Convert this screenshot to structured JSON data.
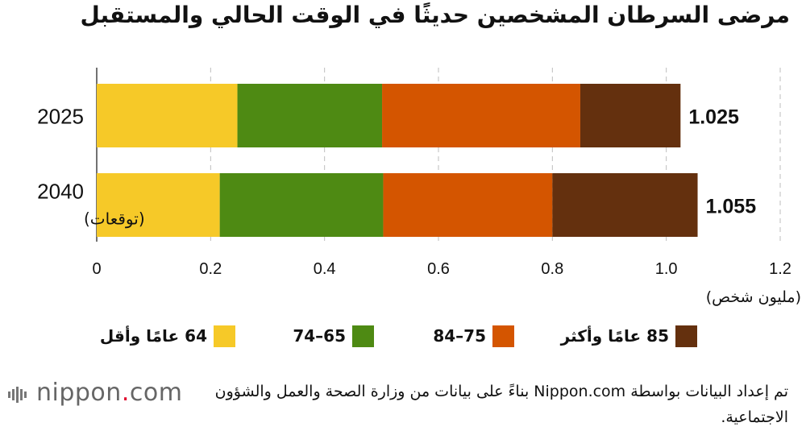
{
  "title": "مرضى السرطان المشخصين حديثًا في الوقت الحالي والمستقبل",
  "chart_data": {
    "type": "bar",
    "orientation": "horizontal",
    "stacked": true,
    "categories": [
      "2025",
      "2040"
    ],
    "category_notes": [
      "",
      "(توقعات)"
    ],
    "series": [
      {
        "name": "64 عامًا وأقل",
        "values": [
          0.247,
          0.216
        ],
        "color": "#F6C928"
      },
      {
        "name": "65–74",
        "values": [
          0.254,
          0.287
        ],
        "color": "#4E8A13"
      },
      {
        "name": "75–84",
        "values": [
          0.348,
          0.297
        ],
        "color": "#D45500"
      },
      {
        "name": "85 عامًا وأكثر",
        "values": [
          0.176,
          0.255
        ],
        "color": "#64300E"
      }
    ],
    "totals": [
      "1.025",
      "1.055"
    ],
    "xlim": [
      0,
      1.2
    ],
    "xticks": [
      "0",
      "0.2",
      "0.4",
      "0.6",
      "0.8",
      "1.0",
      "1.2"
    ],
    "xlabel": "(مليون شخص)",
    "ylabel": "",
    "grid": true,
    "legend_position": "bottom"
  },
  "source": {
    "text": "تم إعداد البيانات بواسطة Nippon.com بناءً على بيانات من وزارة الصحة والعمل والشؤون الاجتماعية."
  },
  "logo": {
    "text_main": "nippon",
    "text_dot": ".",
    "text_tail": "com",
    "accent_color": "#E0002A"
  }
}
